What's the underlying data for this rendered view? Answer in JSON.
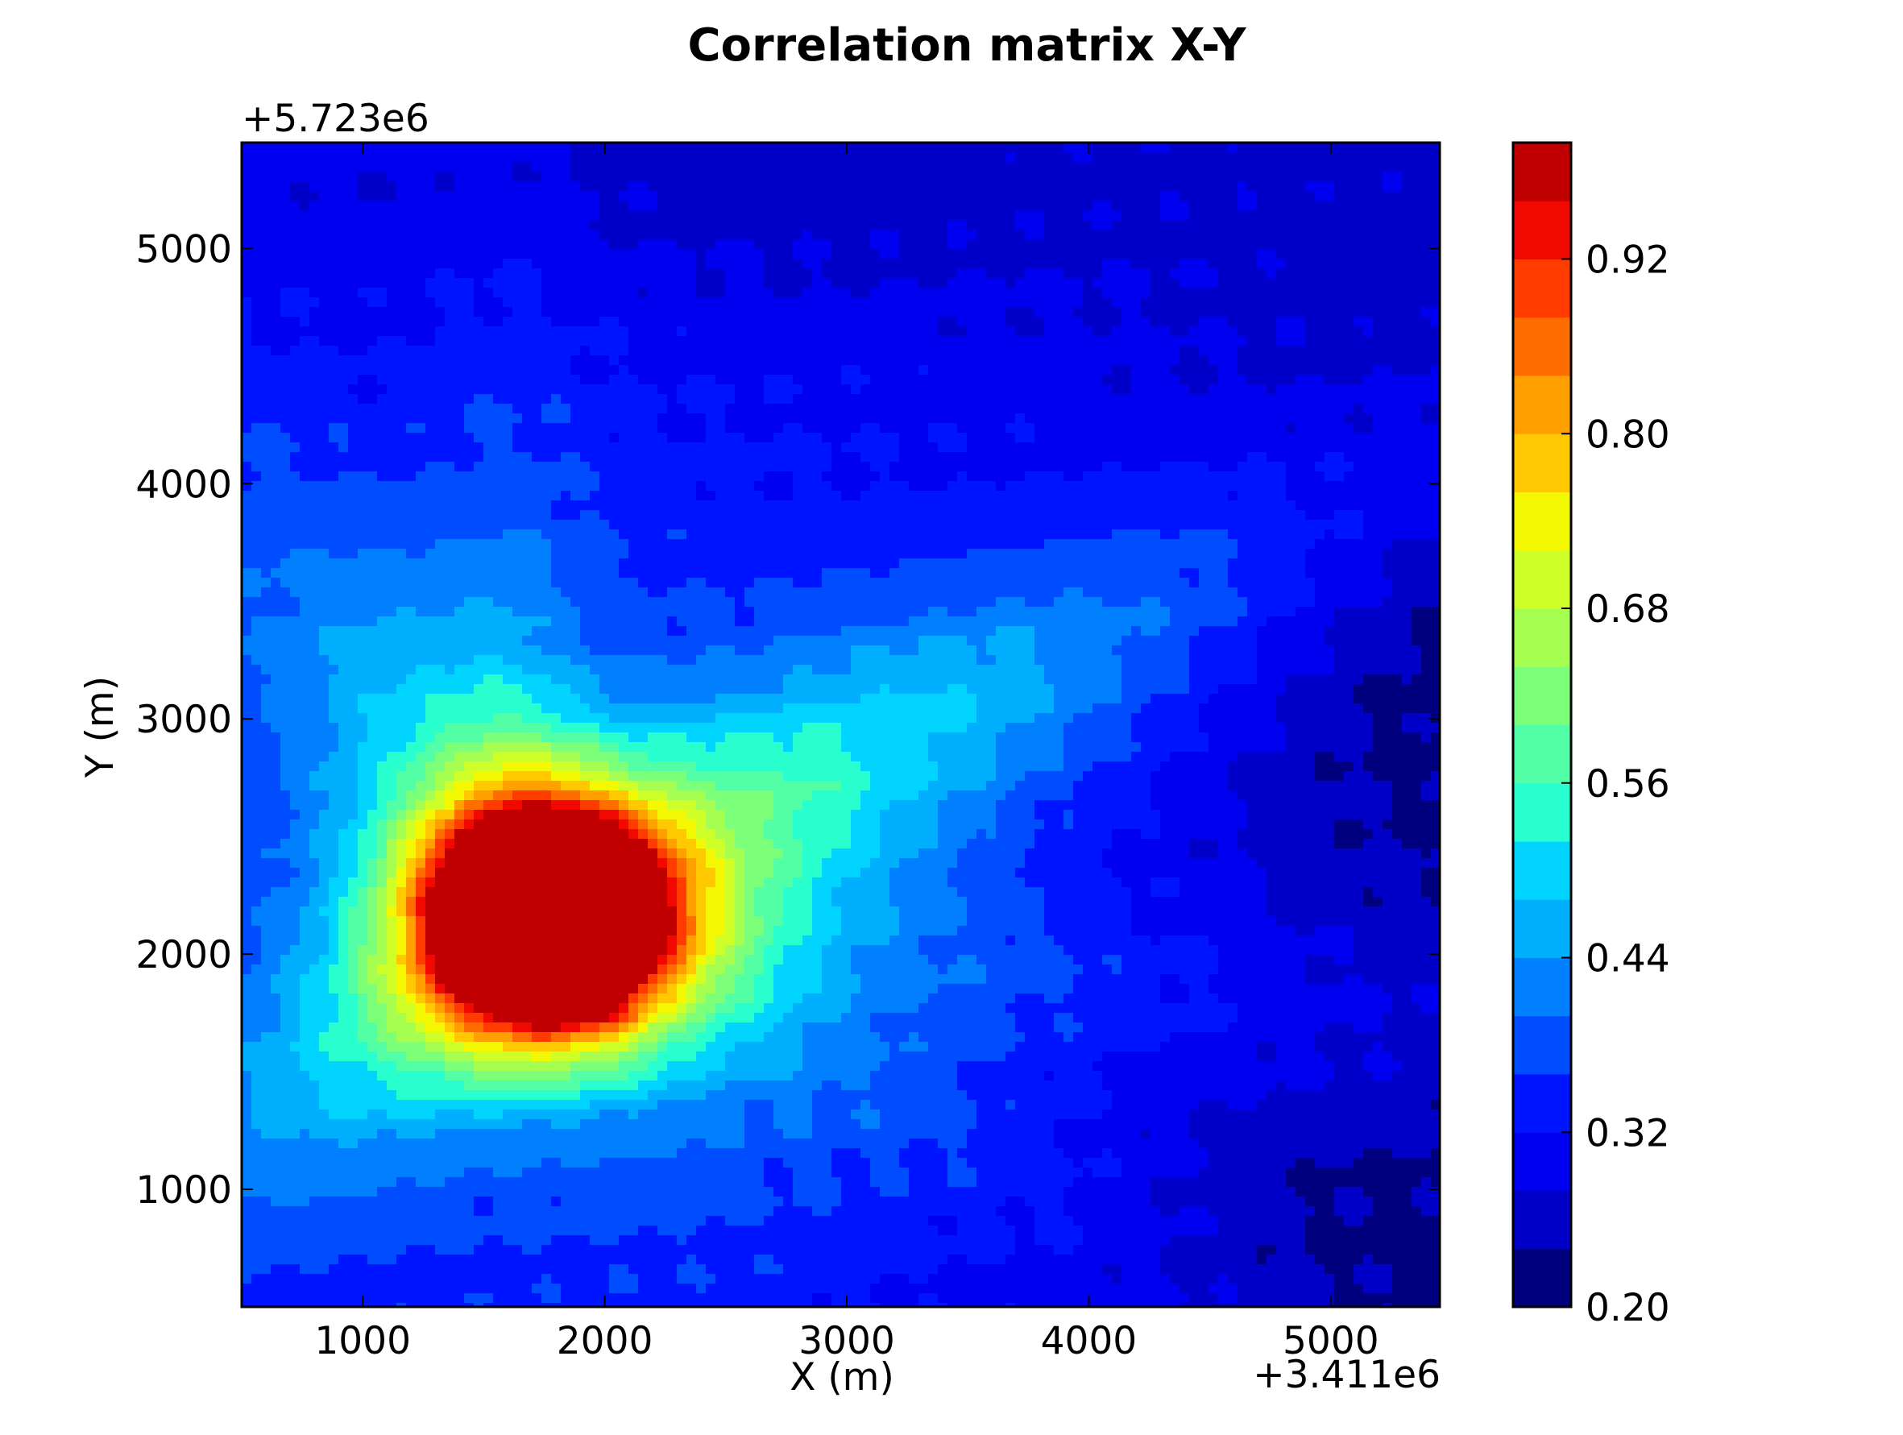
{
  "chart_data": {
    "type": "heatmap",
    "subtype": "filled-contour",
    "title": "Correlation matrix X-Y",
    "xlabel": "X (m)",
    "ylabel": "Y (m)",
    "x_offset_label": "+3.411e6",
    "y_offset_label": "+5.723e6",
    "x_offset": 3411000,
    "y_offset": 5723000,
    "xlim": [
      500,
      5450
    ],
    "ylim": [
      500,
      5450
    ],
    "x_ticks": [
      1000,
      2000,
      3000,
      4000,
      5000
    ],
    "x_tick_labels": [
      "1000",
      "2000",
      "3000",
      "4000",
      "5000"
    ],
    "y_ticks": [
      1000,
      2000,
      3000,
      4000,
      5000
    ],
    "y_tick_labels": [
      "1000",
      "2000",
      "3000",
      "4000",
      "5000"
    ],
    "colormap": "jet",
    "colorbar": {
      "range": [
        0.2,
        1.0
      ],
      "levels": [
        0.2,
        0.24,
        0.28,
        0.32,
        0.36,
        0.4,
        0.44,
        0.48,
        0.52,
        0.56,
        0.6,
        0.64,
        0.68,
        0.72,
        0.76,
        0.8,
        0.84,
        0.88,
        0.92,
        0.96,
        1.0
      ],
      "tick_values": [
        0.2,
        0.32,
        0.44,
        0.56,
        0.68,
        0.8,
        0.92
      ],
      "tick_labels": [
        "0.20",
        "0.32",
        "0.44",
        "0.56",
        "0.68",
        "0.80",
        "0.92"
      ],
      "colors": [
        "#00007f",
        "#0000c8",
        "#0000f1",
        "#0015ff",
        "#004cff",
        "#0080ff",
        "#00b0ff",
        "#00d4ff",
        "#29ffce",
        "#52ffa6",
        "#7cff79",
        "#a6ff50",
        "#ceff29",
        "#f4f802",
        "#ffc800",
        "#ff9f00",
        "#ff6c00",
        "#ff3b00",
        "#f10800",
        "#c00000",
        "#8b0000"
      ]
    },
    "peak": {
      "x": 1750,
      "y": 2150,
      "value": 0.97
    },
    "background_value": 0.29,
    "grid": false
  }
}
